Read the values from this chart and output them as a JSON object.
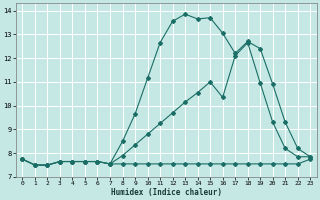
{
  "xlabel": "Humidex (Indice chaleur)",
  "ylabel": "",
  "xlim": [
    -0.5,
    23.5
  ],
  "ylim": [
    7.0,
    14.3
  ],
  "yticks": [
    7,
    8,
    9,
    10,
    11,
    12,
    13,
    14
  ],
  "xticks": [
    0,
    1,
    2,
    3,
    4,
    5,
    6,
    7,
    8,
    9,
    10,
    11,
    12,
    13,
    14,
    15,
    16,
    17,
    18,
    19,
    20,
    21,
    22,
    23
  ],
  "bg_color": "#c5e8e5",
  "grid_color": "#ffffff",
  "line_color": "#1a6e65",
  "line1_x": [
    0,
    1,
    2,
    3,
    4,
    5,
    6,
    7,
    8,
    9,
    10,
    11,
    12,
    13,
    14,
    15,
    16,
    17,
    18,
    19,
    20,
    21,
    22,
    23
  ],
  "line1_y": [
    7.75,
    7.5,
    7.5,
    7.65,
    7.65,
    7.65,
    7.65,
    7.55,
    7.55,
    7.55,
    7.55,
    7.55,
    7.55,
    7.55,
    7.55,
    7.55,
    7.55,
    7.55,
    7.55,
    7.55,
    7.55,
    7.55,
    7.55,
    7.75
  ],
  "line2_x": [
    0,
    1,
    2,
    3,
    4,
    5,
    6,
    7,
    8,
    9,
    10,
    11,
    12,
    13,
    14,
    15,
    16,
    17,
    18,
    19,
    20,
    21,
    22,
    23
  ],
  "line2_y": [
    7.75,
    7.5,
    7.5,
    7.65,
    7.65,
    7.65,
    7.65,
    7.55,
    8.5,
    9.65,
    11.15,
    12.65,
    13.55,
    13.85,
    13.65,
    13.7,
    13.05,
    12.2,
    12.7,
    12.4,
    10.9,
    9.3,
    8.2,
    7.85
  ],
  "line3_x": [
    0,
    1,
    2,
    3,
    4,
    5,
    6,
    7,
    8,
    9,
    10,
    11,
    12,
    13,
    14,
    15,
    16,
    17,
    18,
    19,
    20,
    21,
    22,
    23
  ],
  "line3_y": [
    7.75,
    7.5,
    7.5,
    7.65,
    7.65,
    7.65,
    7.65,
    7.55,
    7.9,
    8.35,
    8.8,
    9.25,
    9.7,
    10.15,
    10.55,
    11.0,
    10.35,
    12.1,
    12.65,
    10.95,
    9.3,
    8.2,
    7.85,
    7.85
  ]
}
